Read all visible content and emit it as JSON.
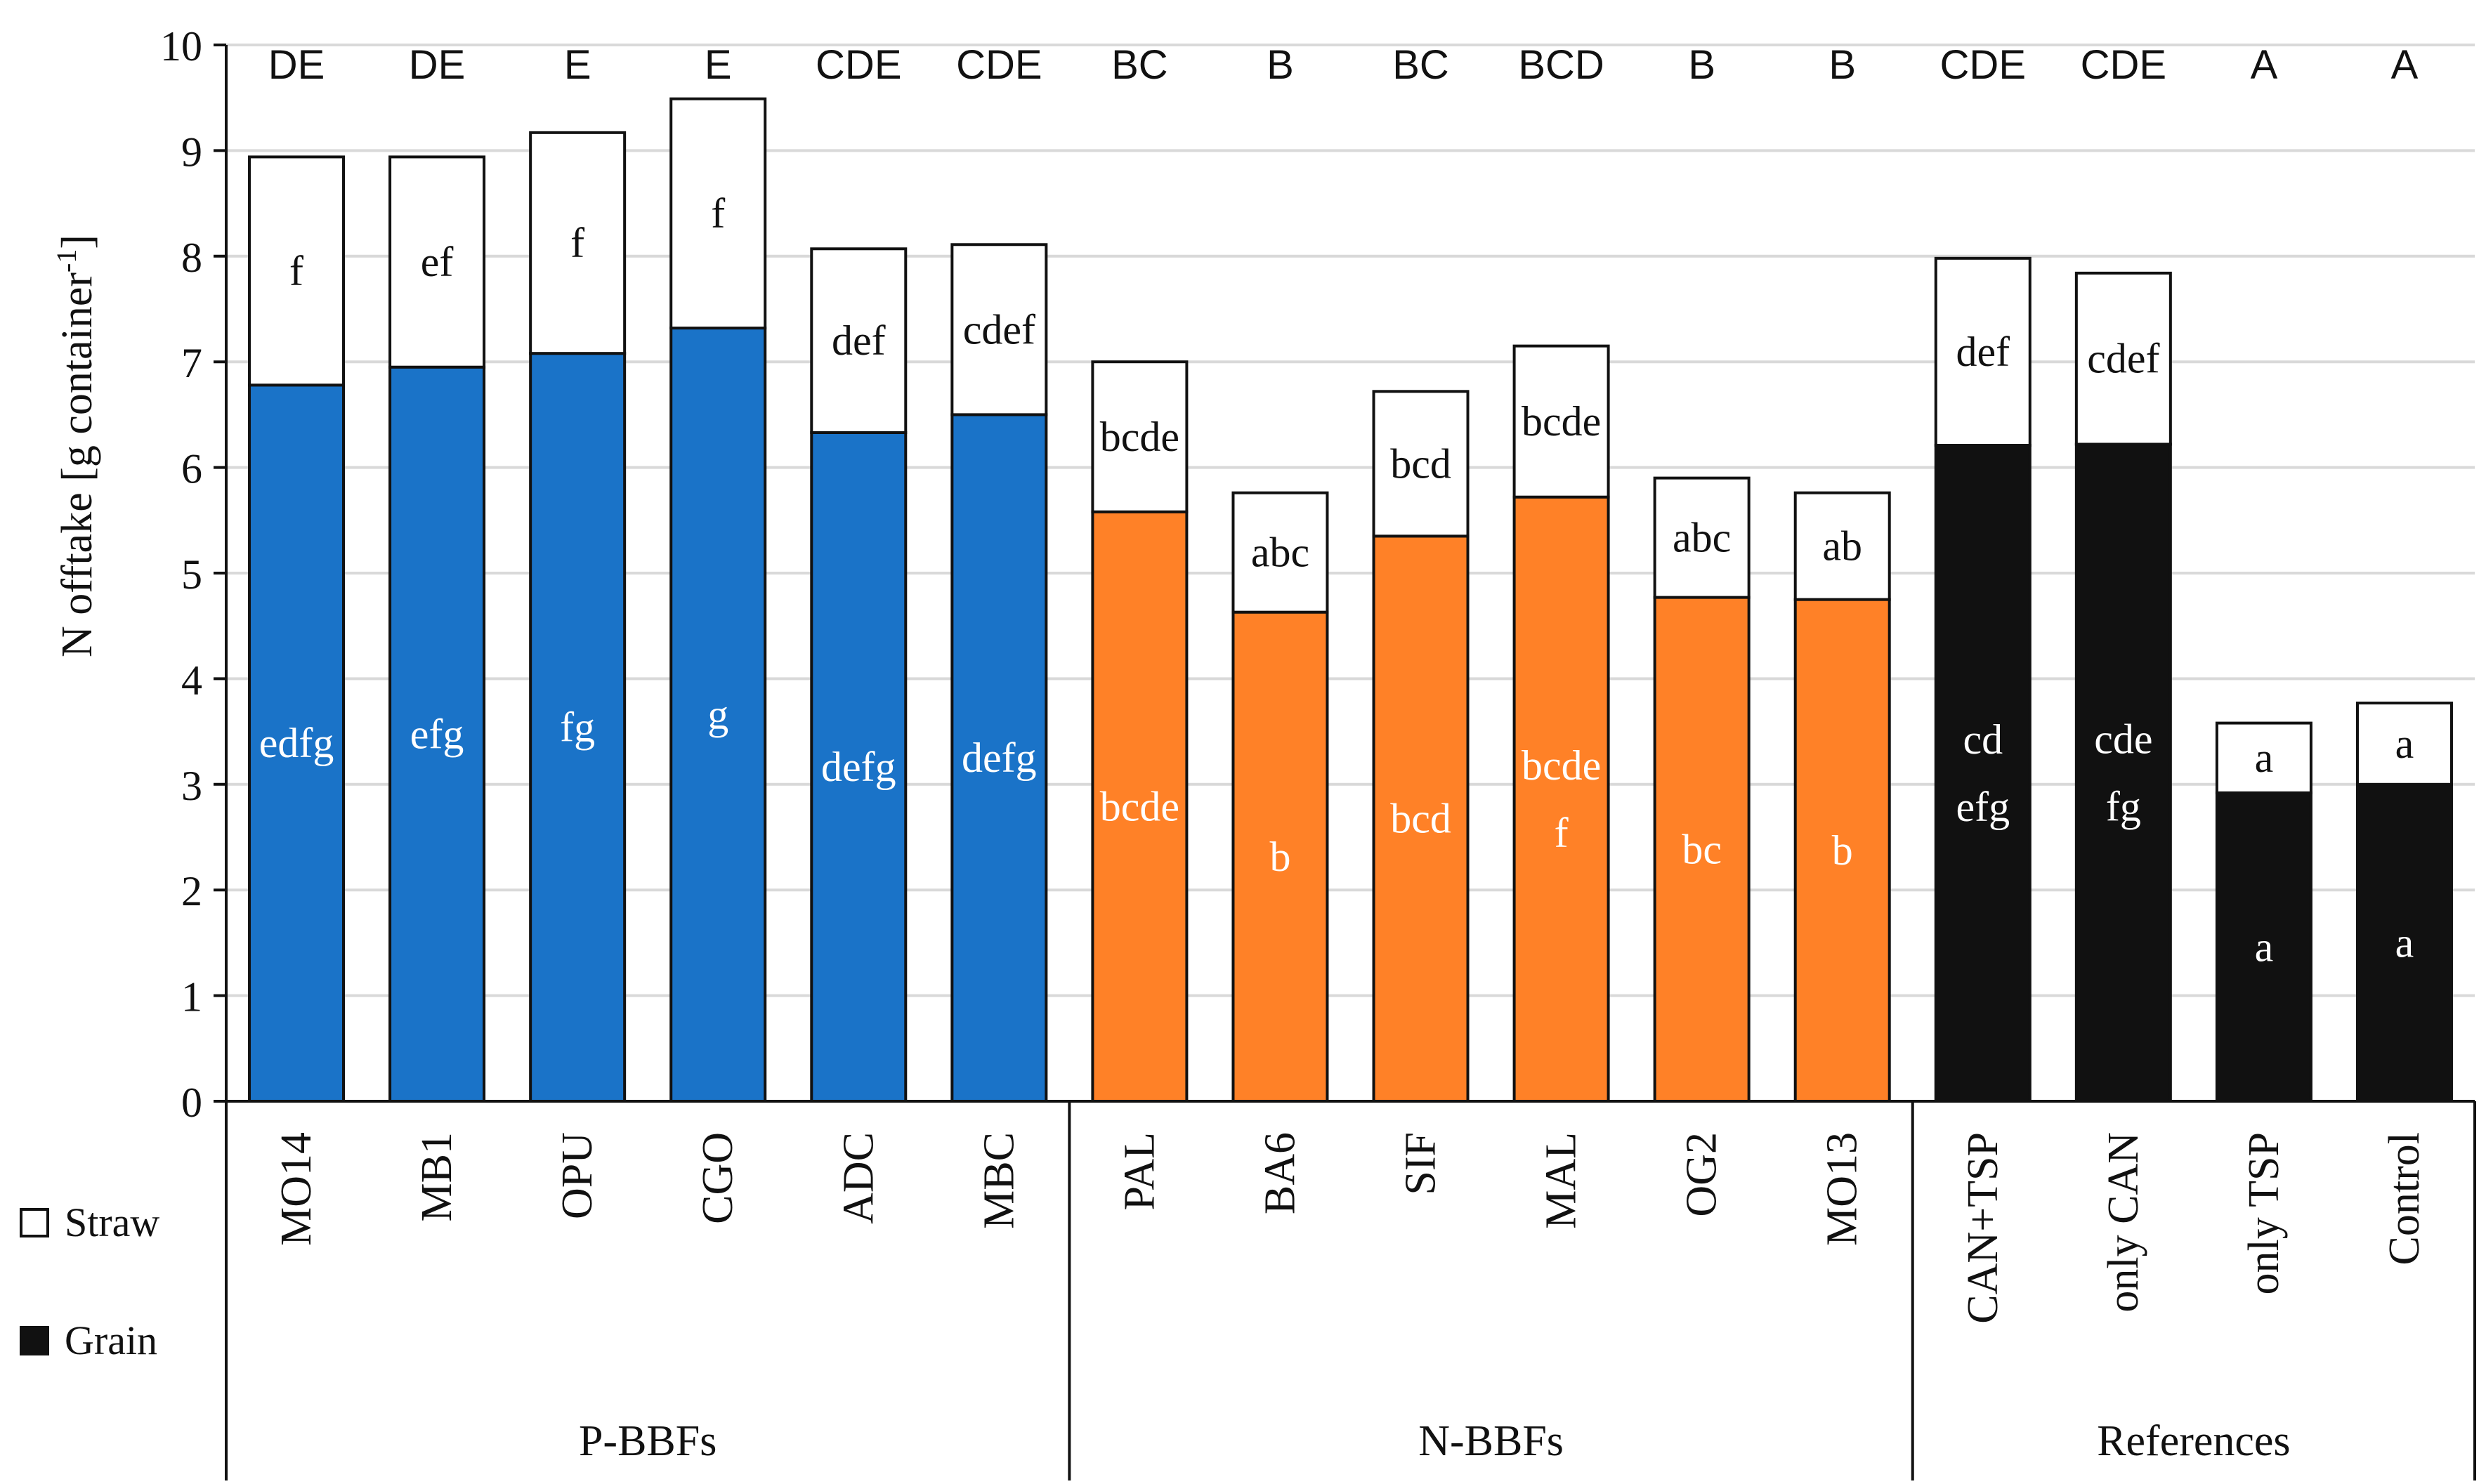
{
  "chart_data": {
    "type": "bar",
    "stacked": true,
    "ylabel": "N offtake  [g container",
    "ylabel_sup": "-1",
    "ylabel_end": "]",
    "ylim": [
      0,
      10
    ],
    "yticks": [
      0,
      1,
      2,
      3,
      4,
      5,
      6,
      7,
      8,
      9,
      10
    ],
    "grid": true,
    "legend_position": "bottom-left",
    "legend": [
      {
        "name": "Straw",
        "fill": "#ffffff"
      },
      {
        "name": "Grain",
        "fill": "#111111"
      }
    ],
    "groups": [
      {
        "label": "P-BBFs",
        "color": "#1a73c8"
      },
      {
        "label": "N-BBFs",
        "color": "#ff8127"
      },
      {
        "label": "References",
        "color": "#111111"
      }
    ],
    "categories": [
      "MO14",
      "MB1",
      "OPU",
      "CGO",
      "ADC",
      "MBC",
      "PAL",
      "BA6",
      "SIF",
      "MAL",
      "OG2",
      "MO13",
      "CAN+TSP",
      "only CAN",
      "only TSP",
      "Control"
    ],
    "category_group": [
      0,
      0,
      0,
      0,
      0,
      0,
      1,
      1,
      1,
      1,
      1,
      1,
      2,
      2,
      2,
      2
    ],
    "series": [
      {
        "name": "Grain",
        "values": [
          6.78,
          6.95,
          7.08,
          7.32,
          6.33,
          6.5,
          5.58,
          4.63,
          5.35,
          5.72,
          4.77,
          4.75,
          6.21,
          6.22,
          2.92,
          3.0
        ]
      },
      {
        "name": "Straw",
        "values": [
          2.16,
          1.99,
          2.09,
          2.17,
          1.74,
          1.61,
          1.42,
          1.13,
          1.37,
          1.43,
          1.13,
          1.01,
          1.77,
          1.62,
          0.66,
          0.77
        ]
      }
    ],
    "total_letters": [
      "DE",
      "DE",
      "E",
      "E",
      "CDE",
      "CDE",
      "BC",
      "B",
      "BC",
      "BCD",
      "B",
      "B",
      "CDE",
      "CDE",
      "A",
      "A"
    ],
    "straw_letters": [
      "f",
      "ef",
      "f",
      "f",
      "def",
      "cdef",
      "bcde",
      "abc",
      "bcd",
      "bcde",
      "abc",
      "ab",
      "def",
      "cdef",
      "a",
      "a"
    ],
    "grain_letters": [
      [
        "edfg"
      ],
      [
        "efg"
      ],
      [
        "fg"
      ],
      [
        "g"
      ],
      [
        "defg"
      ],
      [
        "defg"
      ],
      [
        "bcde"
      ],
      [
        "b"
      ],
      [
        "bcd"
      ],
      [
        "bcde",
        "f"
      ],
      [
        "bc"
      ],
      [
        "b"
      ],
      [
        "cd",
        "efg"
      ],
      [
        "cde",
        "fg"
      ],
      [
        "a"
      ],
      [
        "a"
      ]
    ]
  }
}
